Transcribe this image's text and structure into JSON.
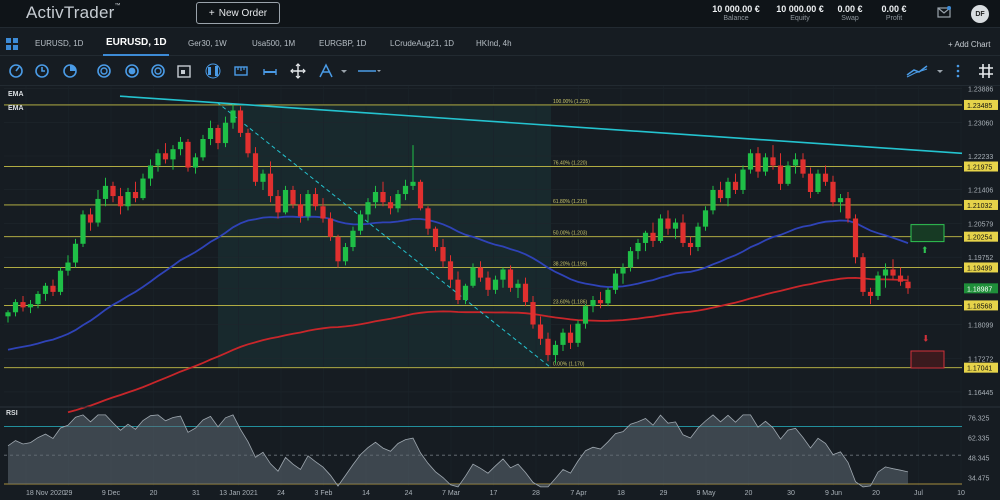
{
  "header": {
    "logo": "ActivTrader",
    "logo_mark": "™",
    "new_order_label": "New Order",
    "stats": [
      {
        "value": "10 000.00 €",
        "label": "Balance"
      },
      {
        "value": "10 000.00 €",
        "label": "Equity"
      },
      {
        "value": "0.00 €",
        "label": "Swap"
      },
      {
        "value": "0.00 €",
        "label": "Profit"
      }
    ],
    "avatar": "DF",
    "icons": [
      "mail-icon",
      "settings-icon"
    ]
  },
  "tabs": [
    {
      "label": "EURUSD, 1D",
      "active": false
    },
    {
      "label": "EURUSD, 1D",
      "active": true
    },
    {
      "label": "Ger30, 1W",
      "active": false
    },
    {
      "label": "Usa500, 1M",
      "active": false
    },
    {
      "label": "EURGBP, 1D",
      "active": false
    },
    {
      "label": "LCrudeAug21, 1D",
      "active": false
    },
    {
      "label": "HKInd, 4h",
      "active": false
    }
  ],
  "add_chart_label": "+ Add Chart",
  "toolbar": {
    "icons": [
      "circle-gauge-icon",
      "clock-icon",
      "pie-icon",
      "target-icon",
      "dollar-icon",
      "candles-icon",
      "calendar-icon",
      "ruler-icon",
      "crosshair-icon",
      "pen-icon",
      "line-style-icon",
      "trend-lines-icon",
      "settings-icon",
      "hash-icon"
    ]
  },
  "indicators": {
    "ema1": "EMA",
    "ema2": "EMA",
    "rsi": "RSI"
  },
  "colors": {
    "bull": "#1fbf47",
    "bear": "#e0302f",
    "ema_fast": "#2f43b8",
    "ema_slow": "#c8262a",
    "trendline": "#24c3cf",
    "fib": "#d8d04a",
    "accent": "#3d8bd6"
  },
  "chart_data": {
    "type": "candlestick",
    "symbol": "EURUSD",
    "timeframe": "1D",
    "ylim": [
      1.1615,
      1.2395
    ],
    "price_ticks": [
      "1.23886",
      "1.23485",
      "1.23060",
      "1.22233",
      "1.21975",
      "1.21406",
      "1.21032",
      "1.20579",
      "1.20254",
      "1.19752",
      "1.19499",
      "1.18987",
      "1.18568",
      "1.18099",
      "1.17272",
      "1.17041",
      "1.16445"
    ],
    "highlighted_ticks": [
      {
        "label": "1.23485",
        "style": "fib"
      },
      {
        "label": "1.21975",
        "style": "fib"
      },
      {
        "label": "1.21032",
        "style": "fib"
      },
      {
        "label": "1.20254",
        "style": "fib"
      },
      {
        "label": "1.19499",
        "style": "fib"
      },
      {
        "label": "1.18987",
        "style": "current"
      },
      {
        "label": "1.18568",
        "style": "fib"
      },
      {
        "label": "1.17041",
        "style": "fib"
      }
    ],
    "fib_levels": [
      {
        "label": "100.00% (1.235)",
        "price": 1.23485
      },
      {
        "label": "76.40% (1.220)",
        "price": 1.21975
      },
      {
        "label": "61.80% (1.210)",
        "price": 1.21032
      },
      {
        "label": "50.00% (1.203)",
        "price": 1.20254
      },
      {
        "label": "38.20% (1.195)",
        "price": 1.19499
      },
      {
        "label": "23.60% (1.186)",
        "price": 1.18568
      },
      {
        "label": "0.00% (1.170)",
        "price": 1.17041
      }
    ],
    "x_labels": [
      "18 Nov 2020",
      "29",
      "9 Dec",
      "20",
      "31",
      "13 Jan 2021",
      "24",
      "3 Feb",
      "14",
      "24",
      "7 Mar",
      "17",
      "28",
      "7 Apr",
      "18",
      "29",
      "9 May",
      "20",
      "30",
      "9 Jun",
      "20",
      "Jul",
      "10"
    ],
    "candles": [
      [
        1.183,
        1.1845,
        1.1815,
        1.184
      ],
      [
        1.184,
        1.1872,
        1.183,
        1.1865
      ],
      [
        1.1865,
        1.188,
        1.1842,
        1.1852
      ],
      [
        1.1852,
        1.187,
        1.1838,
        1.186
      ],
      [
        1.186,
        1.1892,
        1.185,
        1.1885
      ],
      [
        1.1885,
        1.1912,
        1.1868,
        1.1905
      ],
      [
        1.1905,
        1.192,
        1.188,
        1.189
      ],
      [
        1.189,
        1.195,
        1.1882,
        1.1942
      ],
      [
        1.1942,
        1.198,
        1.193,
        1.1962
      ],
      [
        1.1962,
        1.202,
        1.195,
        1.2008
      ],
      [
        1.2008,
        1.209,
        1.2,
        1.208
      ],
      [
        1.208,
        1.2095,
        1.204,
        1.206
      ],
      [
        1.206,
        1.214,
        1.205,
        1.2118
      ],
      [
        1.2118,
        1.217,
        1.21,
        1.215
      ],
      [
        1.215,
        1.216,
        1.211,
        1.2125
      ],
      [
        1.2125,
        1.2145,
        1.208,
        1.21
      ],
      [
        1.21,
        1.2145,
        1.209,
        1.2135
      ],
      [
        1.2135,
        1.216,
        1.211,
        1.212
      ],
      [
        1.212,
        1.218,
        1.2115,
        1.2168
      ],
      [
        1.2168,
        1.2215,
        1.215,
        1.22
      ],
      [
        1.22,
        1.224,
        1.2185,
        1.223
      ],
      [
        1.223,
        1.2255,
        1.2205,
        1.2215
      ],
      [
        1.2215,
        1.225,
        1.219,
        1.224
      ],
      [
        1.224,
        1.227,
        1.2225,
        1.2258
      ],
      [
        1.2258,
        1.2265,
        1.2185,
        1.2195
      ],
      [
        1.2195,
        1.223,
        1.218,
        1.222
      ],
      [
        1.222,
        1.2275,
        1.2212,
        1.2265
      ],
      [
        1.2265,
        1.231,
        1.225,
        1.2292
      ],
      [
        1.2292,
        1.23,
        1.224,
        1.2255
      ],
      [
        1.2255,
        1.232,
        1.2245,
        1.2305
      ],
      [
        1.2305,
        1.235,
        1.229,
        1.2335
      ],
      [
        1.2335,
        1.2345,
        1.227,
        1.228
      ],
      [
        1.228,
        1.229,
        1.222,
        1.223
      ],
      [
        1.223,
        1.2245,
        1.215,
        1.216
      ],
      [
        1.216,
        1.219,
        1.214,
        1.218
      ],
      [
        1.218,
        1.221,
        1.211,
        1.2125
      ],
      [
        1.2125,
        1.214,
        1.207,
        1.2085
      ],
      [
        1.2085,
        1.215,
        1.208,
        1.214
      ],
      [
        1.214,
        1.215,
        1.2095,
        1.2105
      ],
      [
        1.2105,
        1.213,
        1.206,
        1.2075
      ],
      [
        1.2075,
        1.214,
        1.2065,
        1.213
      ],
      [
        1.213,
        1.2145,
        1.209,
        1.21
      ],
      [
        1.21,
        1.212,
        1.206,
        1.207
      ],
      [
        1.207,
        1.2085,
        1.2015,
        1.2025
      ],
      [
        1.2025,
        1.203,
        1.195,
        1.1965
      ],
      [
        1.1965,
        1.201,
        1.1955,
        1.2
      ],
      [
        1.2,
        1.205,
        1.199,
        1.204
      ],
      [
        1.204,
        1.209,
        1.203,
        1.208
      ],
      [
        1.208,
        1.212,
        1.206,
        1.211
      ],
      [
        1.211,
        1.215,
        1.2095,
        1.2135
      ],
      [
        1.2135,
        1.216,
        1.21,
        1.211
      ],
      [
        1.211,
        1.2125,
        1.208,
        1.2095
      ],
      [
        1.2095,
        1.214,
        1.2085,
        1.213
      ],
      [
        1.213,
        1.2165,
        1.2115,
        1.215
      ],
      [
        1.215,
        1.225,
        1.214,
        1.216
      ],
      [
        1.216,
        1.2165,
        1.209,
        1.2095
      ],
      [
        1.2095,
        1.21,
        1.203,
        1.2045
      ],
      [
        1.2045,
        1.205,
        1.199,
        1.2
      ],
      [
        1.2,
        1.202,
        1.195,
        1.1965
      ],
      [
        1.1965,
        1.198,
        1.19,
        1.192
      ],
      [
        1.192,
        1.194,
        1.186,
        1.187
      ],
      [
        1.187,
        1.191,
        1.186,
        1.1905
      ],
      [
        1.1905,
        1.196,
        1.19,
        1.195
      ],
      [
        1.195,
        1.1965,
        1.1915,
        1.1925
      ],
      [
        1.1925,
        1.194,
        1.188,
        1.1895
      ],
      [
        1.1895,
        1.193,
        1.1885,
        1.192
      ],
      [
        1.192,
        1.195,
        1.19,
        1.1945
      ],
      [
        1.1945,
        1.1955,
        1.189,
        1.19
      ],
      [
        1.19,
        1.192,
        1.1875,
        1.191
      ],
      [
        1.191,
        1.1925,
        1.1855,
        1.1865
      ],
      [
        1.1865,
        1.188,
        1.18,
        1.181
      ],
      [
        1.181,
        1.183,
        1.176,
        1.1775
      ],
      [
        1.1775,
        1.179,
        1.172,
        1.1735
      ],
      [
        1.1735,
        1.177,
        1.1715,
        1.176
      ],
      [
        1.176,
        1.18,
        1.1745,
        1.179
      ],
      [
        1.179,
        1.181,
        1.175,
        1.1765
      ],
      [
        1.1765,
        1.182,
        1.1755,
        1.1812
      ],
      [
        1.1812,
        1.186,
        1.18,
        1.1855
      ],
      [
        1.1855,
        1.188,
        1.184,
        1.187
      ],
      [
        1.187,
        1.189,
        1.185,
        1.1862
      ],
      [
        1.1862,
        1.19,
        1.1855,
        1.1895
      ],
      [
        1.1895,
        1.1945,
        1.1885,
        1.1935
      ],
      [
        1.1935,
        1.196,
        1.191,
        1.195
      ],
      [
        1.195,
        1.2,
        1.194,
        1.199
      ],
      [
        1.199,
        1.202,
        1.197,
        1.201
      ],
      [
        1.201,
        1.204,
        1.199,
        1.2035
      ],
      [
        1.2035,
        1.206,
        1.2,
        1.2015
      ],
      [
        1.2015,
        1.208,
        1.201,
        1.207
      ],
      [
        1.207,
        1.209,
        1.203,
        1.2045
      ],
      [
        1.2045,
        1.207,
        1.202,
        1.206
      ],
      [
        1.206,
        1.208,
        1.2,
        1.201
      ],
      [
        1.201,
        1.2025,
        1.198,
        1.2
      ],
      [
        1.2,
        1.206,
        1.199,
        1.205
      ],
      [
        1.205,
        1.21,
        1.204,
        1.209
      ],
      [
        1.209,
        1.215,
        1.208,
        1.214
      ],
      [
        1.214,
        1.216,
        1.211,
        1.212
      ],
      [
        1.212,
        1.217,
        1.21,
        1.216
      ],
      [
        1.216,
        1.218,
        1.213,
        1.214
      ],
      [
        1.214,
        1.22,
        1.213,
        1.219
      ],
      [
        1.219,
        1.224,
        1.218,
        1.223
      ],
      [
        1.223,
        1.2245,
        1.217,
        1.2185
      ],
      [
        1.2185,
        1.223,
        1.2175,
        1.222
      ],
      [
        1.222,
        1.225,
        1.219,
        1.22
      ],
      [
        1.22,
        1.223,
        1.214,
        1.2155
      ],
      [
        1.2155,
        1.221,
        1.215,
        1.22
      ],
      [
        1.22,
        1.223,
        1.218,
        1.2215
      ],
      [
        1.2215,
        1.223,
        1.217,
        1.218
      ],
      [
        1.218,
        1.2195,
        1.212,
        1.2135
      ],
      [
        1.2135,
        1.219,
        1.213,
        1.218
      ],
      [
        1.218,
        1.22,
        1.215,
        1.216
      ],
      [
        1.216,
        1.2175,
        1.21,
        1.211
      ],
      [
        1.211,
        1.213,
        1.2085,
        1.212
      ],
      [
        1.212,
        1.2135,
        1.206,
        1.207
      ],
      [
        1.207,
        1.208,
        1.196,
        1.1975
      ],
      [
        1.1975,
        1.1985,
        1.188,
        1.189
      ],
      [
        1.189,
        1.19,
        1.186,
        1.188
      ],
      [
        1.188,
        1.194,
        1.187,
        1.193
      ],
      [
        1.193,
        1.196,
        1.19,
        1.1945
      ],
      [
        1.1945,
        1.197,
        1.192,
        1.193
      ],
      [
        1.193,
        1.195,
        1.1905,
        1.1915
      ],
      [
        1.1915,
        1.193,
        1.1885,
        1.1899
      ]
    ],
    "rsi_ticks": [
      "76.325",
      "62.335",
      "48.345",
      "34.475"
    ],
    "rsi_levels": [
      70,
      30
    ]
  }
}
